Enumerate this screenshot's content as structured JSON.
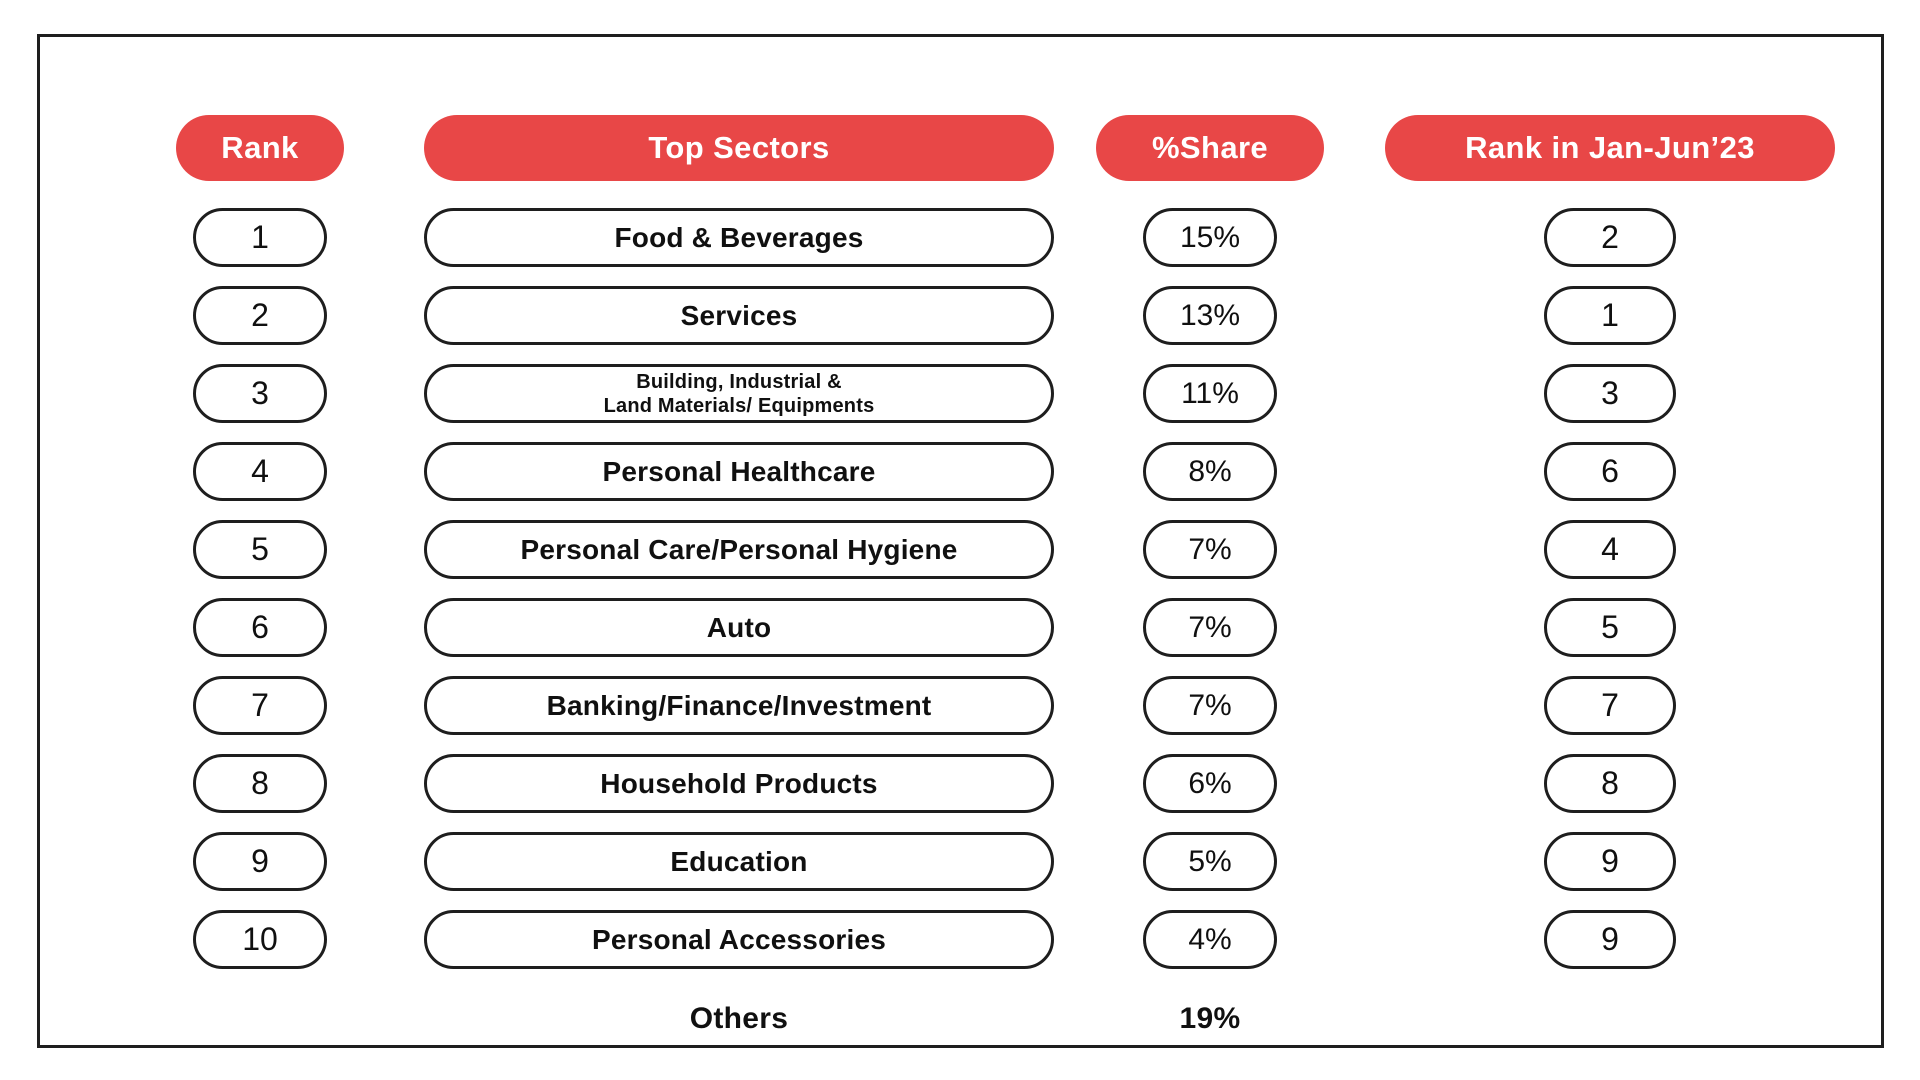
{
  "colors": {
    "accent_red": "#E84747",
    "pill_border": "#1E1E1E",
    "text": "#101010",
    "header_text": "#FFFFFF",
    "background": "#FFFFFF"
  },
  "chart_data": {
    "type": "table",
    "columns": [
      "Rank",
      "Top Sectors",
      "%Share",
      "Rank in Jan-Jun’23"
    ],
    "rows": [
      {
        "rank": "1",
        "sector": "Food & Beverages",
        "share_pct": 15,
        "rank_jan_jun_23": "2"
      },
      {
        "rank": "2",
        "sector": "Services",
        "share_pct": 13,
        "rank_jan_jun_23": "1"
      },
      {
        "rank": "3",
        "sector": "Building, Industrial &",
        "sector_line2": "Land Materials/ Equipments",
        "share_pct": 11,
        "rank_jan_jun_23": "3"
      },
      {
        "rank": "4",
        "sector": "Personal Healthcare",
        "share_pct": 8,
        "rank_jan_jun_23": "6"
      },
      {
        "rank": "5",
        "sector": "Personal Care/Personal Hygiene",
        "share_pct": 7,
        "rank_jan_jun_23": "4"
      },
      {
        "rank": "6",
        "sector": "Auto",
        "share_pct": 7,
        "rank_jan_jun_23": "5"
      },
      {
        "rank": "7",
        "sector": "Banking/Finance/Investment",
        "share_pct": 7,
        "rank_jan_jun_23": "7"
      },
      {
        "rank": "8",
        "sector": "Household Products",
        "share_pct": 6,
        "rank_jan_jun_23": "8"
      },
      {
        "rank": "9",
        "sector": "Education",
        "share_pct": 5,
        "rank_jan_jun_23": "9"
      },
      {
        "rank": "10",
        "sector": "Personal Accessories",
        "share_pct": 4,
        "rank_jan_jun_23": "9"
      }
    ],
    "others": {
      "label": "Others",
      "share_pct": 19
    }
  }
}
